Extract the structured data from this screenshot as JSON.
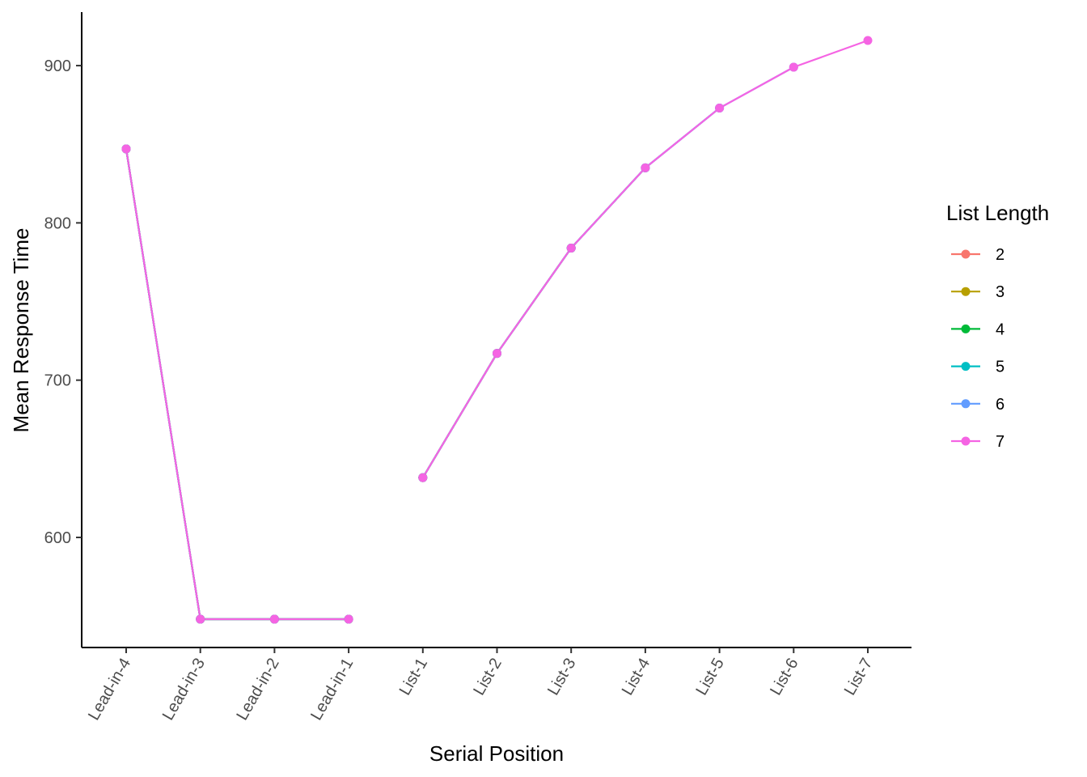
{
  "chart_data": {
    "type": "line",
    "xlabel": "Serial Position",
    "ylabel": "Mean Response Time",
    "categories": [
      "Lead-in-4",
      "Lead-in-3",
      "Lead-in-2",
      "Lead-in-1",
      "List-1",
      "List-2",
      "List-3",
      "List-4",
      "List-5",
      "List-6",
      "List-7"
    ],
    "yticks": [
      600,
      700,
      800,
      900
    ],
    "ylim": [
      530,
      934
    ],
    "grid": false,
    "legend": {
      "title": "List Length",
      "position": "right"
    },
    "series": [
      {
        "name": "2",
        "color": "#F8766D",
        "segments": [
          [
            847,
            548,
            548,
            548,
            null,
            null,
            null,
            null,
            null,
            null,
            null
          ],
          [
            null,
            null,
            null,
            null,
            638,
            717,
            null,
            null,
            null,
            null,
            null
          ]
        ]
      },
      {
        "name": "3",
        "color": "#B79F00",
        "segments": [
          [
            847,
            548,
            548,
            548,
            null,
            null,
            null,
            null,
            null,
            null,
            null
          ],
          [
            null,
            null,
            null,
            null,
            638,
            717,
            784,
            null,
            null,
            null,
            null
          ]
        ]
      },
      {
        "name": "4",
        "color": "#00BA38",
        "segments": [
          [
            847,
            548,
            548,
            548,
            null,
            null,
            null,
            null,
            null,
            null,
            null
          ],
          [
            null,
            null,
            null,
            null,
            638,
            717,
            784,
            835,
            null,
            null,
            null
          ]
        ]
      },
      {
        "name": "5",
        "color": "#00BFC4",
        "segments": [
          [
            847,
            548,
            548,
            548,
            null,
            null,
            null,
            null,
            null,
            null,
            null
          ],
          [
            null,
            null,
            null,
            null,
            638,
            717,
            784,
            835,
            873,
            null,
            null
          ]
        ]
      },
      {
        "name": "6",
        "color": "#619CFF",
        "segments": [
          [
            847,
            548,
            548,
            548,
            null,
            null,
            null,
            null,
            null,
            null,
            null
          ],
          [
            null,
            null,
            null,
            null,
            638,
            717,
            784,
            835,
            873,
            899,
            null
          ]
        ]
      },
      {
        "name": "7",
        "color": "#F564E3",
        "segments": [
          [
            847,
            548,
            548,
            548,
            null,
            null,
            null,
            null,
            null,
            null,
            null
          ],
          [
            null,
            null,
            null,
            null,
            638,
            717,
            784,
            835,
            873,
            899,
            916
          ]
        ]
      }
    ]
  }
}
